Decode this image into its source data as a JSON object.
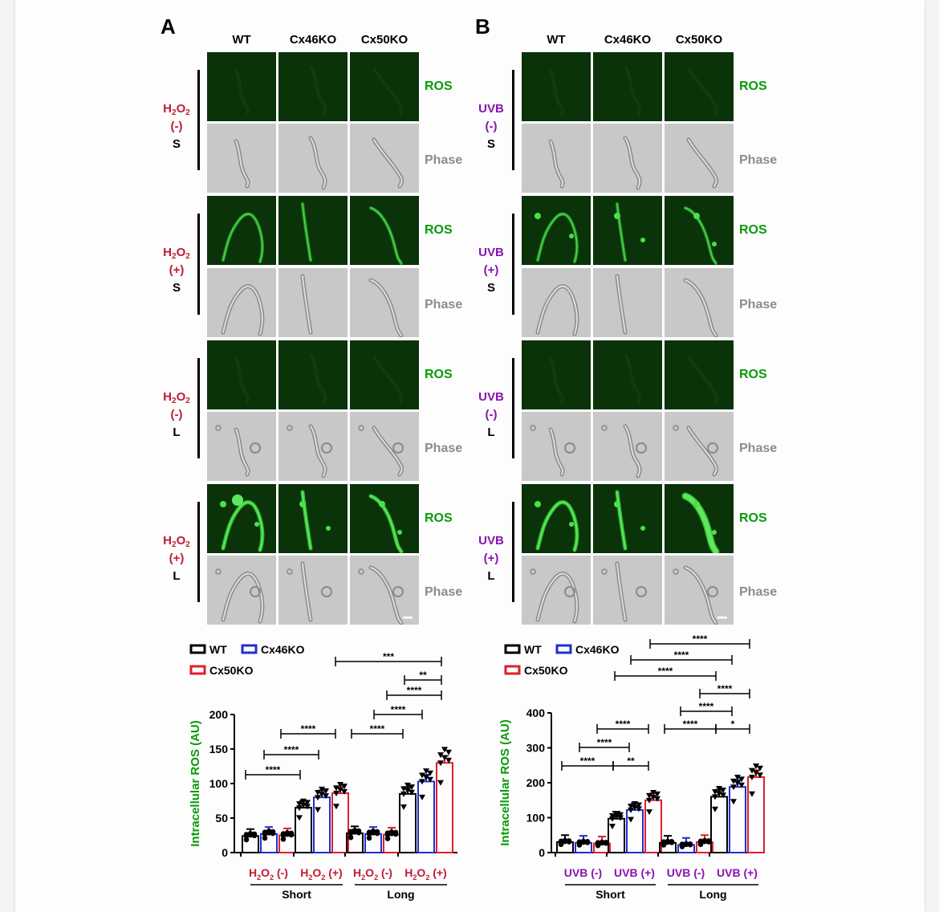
{
  "panel_a": {
    "letter": "A",
    "columns": [
      "WT",
      "Cx46KO",
      "Cx50KO"
    ],
    "labels": {
      "ros": "ROS",
      "phase": "Phase"
    },
    "groups": [
      {
        "agent": "H2O2",
        "sign": "(-)",
        "length": "S"
      },
      {
        "agent": "H2O2",
        "sign": "(+)",
        "length": "S"
      },
      {
        "agent": "H2O2",
        "sign": "(-)",
        "length": "L"
      },
      {
        "agent": "H2O2",
        "sign": "(+)",
        "length": "L"
      }
    ]
  },
  "panel_b": {
    "letter": "B",
    "columns": [
      "WT",
      "Cx46KO",
      "Cx50KO"
    ],
    "labels": {
      "ros": "ROS",
      "phase": "Phase"
    },
    "groups": [
      {
        "agent": "UVB",
        "sign": "(-)",
        "length": "S"
      },
      {
        "agent": "UVB",
        "sign": "(+)",
        "length": "S"
      },
      {
        "agent": "UVB",
        "sign": "(-)",
        "length": "L"
      },
      {
        "agent": "UVB",
        "sign": "(+)",
        "length": "L"
      }
    ]
  },
  "colors": {
    "wt": "#000000",
    "cx46ko": "#1f2fd0",
    "cx50ko": "#e01f2a",
    "ros_label": "#0a9a0a",
    "phase_label": "#8c8c8c",
    "h2o2": "#c21b34",
    "uvb": "#8a12b0"
  },
  "chart_data": [
    {
      "type": "bar",
      "ylabel": "Intracellular ROS (AU)",
      "ylim": [
        0,
        200
      ],
      "yticks": [
        0,
        50,
        100,
        150,
        200
      ],
      "legend": [
        "WT",
        "Cx46KO",
        "Cx50KO"
      ],
      "condition_labels": [
        {
          "agent": "H2O2",
          "sign": "(-)"
        },
        {
          "agent": "H2O2",
          "sign": "(+)"
        },
        {
          "agent": "H2O2",
          "sign": "(-)"
        },
        {
          "agent": "H2O2",
          "sign": "(+)"
        }
      ],
      "group_labels": [
        "Short",
        "Long"
      ],
      "series": [
        {
          "name": "WT",
          "values": [
            24,
            65,
            28,
            85
          ]
        },
        {
          "name": "Cx46KO",
          "values": [
            27,
            80,
            27,
            103
          ]
        },
        {
          "name": "Cx50KO",
          "values": [
            25,
            86,
            26,
            130
          ]
        }
      ],
      "significance": [
        "****",
        "****",
        "****",
        "****",
        "****",
        "****",
        "**",
        "***"
      ]
    },
    {
      "type": "bar",
      "ylabel": "Intracellular ROS (AU)",
      "ylim": [
        0,
        400
      ],
      "yticks": [
        0,
        100,
        200,
        300,
        400
      ],
      "legend": [
        "WT",
        "Cx46KO",
        "Cx50KO"
      ],
      "condition_labels": [
        {
          "agent": "UVB",
          "sign": "(-)"
        },
        {
          "agent": "UVB",
          "sign": "(+)"
        },
        {
          "agent": "UVB",
          "sign": "(-)"
        },
        {
          "agent": "UVB",
          "sign": "(+)"
        }
      ],
      "group_labels": [
        "Short",
        "Long"
      ],
      "series": [
        {
          "name": "WT",
          "values": [
            30,
            97,
            28,
            160
          ]
        },
        {
          "name": "Cx46KO",
          "values": [
            28,
            122,
            22,
            188
          ]
        },
        {
          "name": "Cx50KO",
          "values": [
            26,
            150,
            30,
            216
          ]
        }
      ],
      "significance": [
        "****",
        "****",
        "****",
        "**",
        "****",
        "****",
        "*",
        "****",
        "****",
        "****",
        "****"
      ]
    }
  ]
}
